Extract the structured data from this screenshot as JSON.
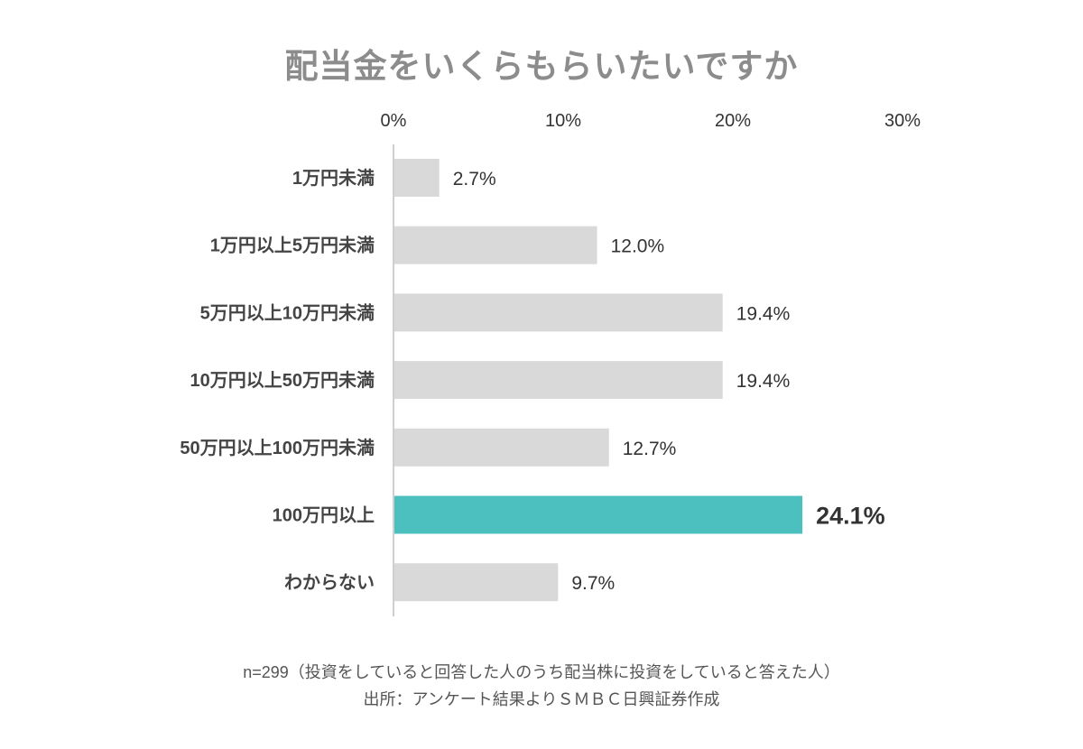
{
  "chart_data": {
    "type": "bar",
    "orientation": "horizontal",
    "title": "配当金をいくらもらいたいですか",
    "categories": [
      "1万円未満",
      "1万円以上5万円未満",
      "5万円以上10万円未満",
      "10万円以上50万円未満",
      "50万円以上100万円未満",
      "100万円以上",
      "わからない"
    ],
    "values": [
      2.7,
      12.0,
      19.4,
      19.4,
      12.7,
      24.1,
      9.7
    ],
    "value_labels": [
      "2.7%",
      "12.0%",
      "19.4%",
      "19.4%",
      "12.7%",
      "24.1%",
      "9.7%"
    ],
    "xticks": [
      0,
      10,
      20,
      30
    ],
    "xtick_labels": [
      "0%",
      "10%",
      "20%",
      "30%"
    ],
    "xlim": [
      0,
      30
    ],
    "axis_position": "top",
    "grid": false,
    "highlight_index": 5,
    "colors": {
      "bar": "#d9d9d9",
      "highlight": "#4cbfbf",
      "title": "#8c8c8c",
      "axis": "#cfcfcf"
    }
  },
  "notes": {
    "sample": "n=299（投資をしていると回答した人のうち配当株に投資をしていると答えた人）",
    "source": "出所：アンケート結果よりＳＭＢＣ日興証券作成"
  }
}
